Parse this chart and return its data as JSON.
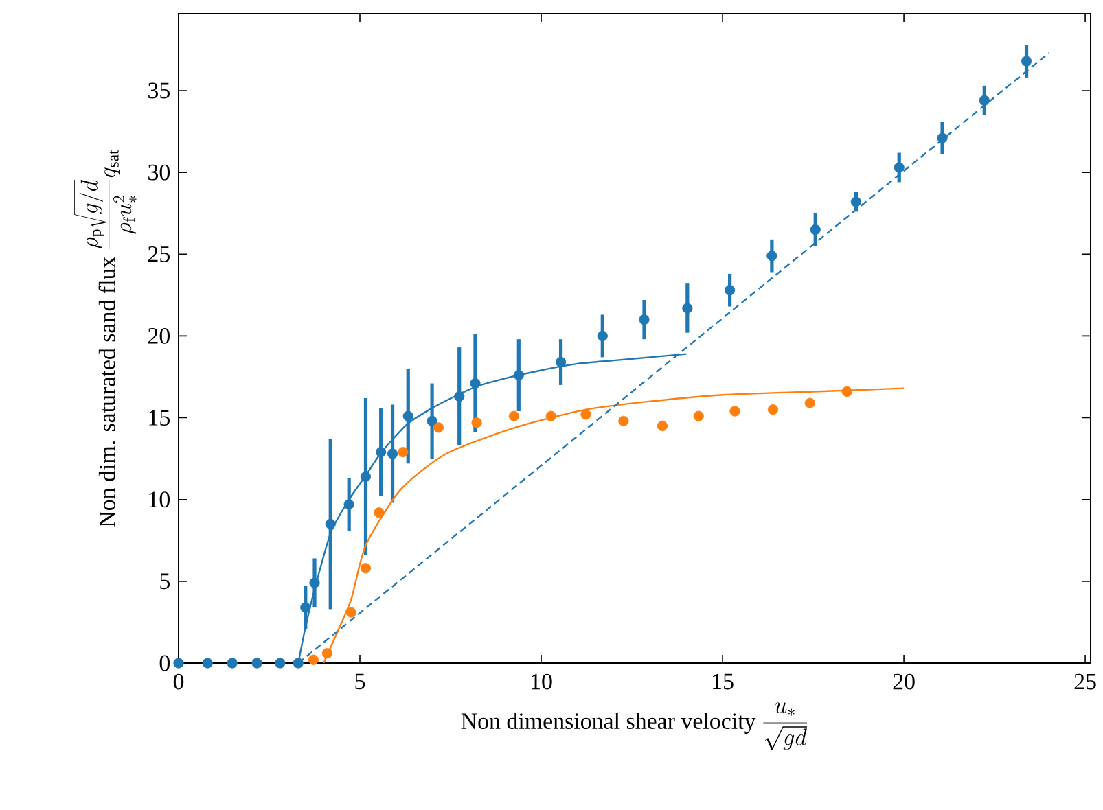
{
  "chart_data": {
    "type": "scatter",
    "xlabel": "\\mbox{Non dimensional shear velocity }\\frac{u_*}{\\sqrt{gd}}",
    "ylabel": "\\mbox{Non dim. saturated sand flux }\\frac{\\rho_{\\mathrm{p}}\\sqrt{g/d}}{\\rho_{\\mathrm{f}}u_*^2}q_{\\mathrm{sat}}",
    "xlim": [
      0,
      25.15
    ],
    "ylim": [
      0,
      39.7
    ],
    "xticks": [
      0,
      5,
      10,
      15,
      20,
      25
    ],
    "yticks": [
      0,
      5,
      10,
      15,
      20,
      25,
      30,
      35
    ],
    "grid": false,
    "series": [
      {
        "color": "#1f77b4",
        "marker": "circle",
        "x": [
          0,
          0.8,
          1.48,
          2.16,
          2.8,
          3.3,
          3.5,
          3.75,
          4.19,
          4.7,
          5.16,
          5.58,
          5.9,
          6.33,
          6.99,
          7.74,
          8.18,
          9.38,
          10.54,
          11.69,
          12.84,
          14.03,
          15.2,
          16.36,
          17.56,
          18.68,
          19.87,
          21.06,
          22.22,
          23.38
        ],
        "values": [
          0,
          0,
          0,
          0,
          0,
          0,
          3.4,
          4.9,
          8.5,
          9.7,
          11.4,
          12.9,
          12.8,
          15.1,
          14.8,
          16.3,
          17.1,
          17.6,
          18.4,
          20.0,
          21.0,
          21.7,
          22.8,
          24.9,
          26.5,
          28.2,
          30.3,
          32.1,
          34.4,
          36.8
        ],
        "errors": [
          null,
          null,
          null,
          null,
          null,
          null,
          1.3,
          1.5,
          5.2,
          1.6,
          4.8,
          2.7,
          3.0,
          2.9,
          2.3,
          3.0,
          3.0,
          2.2,
          1.4,
          1.3,
          1.2,
          1.5,
          1.0,
          1.0,
          1.0,
          0.6,
          0.9,
          1.0,
          0.9,
          1.0
        ]
      },
      {
        "color": "#ff7f0e",
        "marker": "circle",
        "x": [
          3.72,
          4.1,
          4.76,
          5.16,
          5.53,
          6.19,
          7.17,
          8.22,
          9.25,
          10.27,
          11.23,
          12.27,
          13.34,
          14.34,
          15.34,
          16.39,
          17.41,
          18.43
        ],
        "values": [
          0.2,
          0.6,
          3.1,
          5.8,
          9.2,
          12.9,
          14.4,
          14.7,
          15.1,
          15.1,
          15.2,
          14.8,
          14.5,
          15.1,
          15.4,
          15.5,
          15.9,
          16.6
        ]
      },
      {
        "type": "line",
        "color": "#1f77b4",
        "marker": "none",
        "line_style": "solid",
        "x": [
          3.3,
          3.5,
          3.75,
          4.2,
          4.7,
          5.2,
          5.6,
          6.3,
          7,
          7.7,
          8.2,
          9,
          10,
          11,
          12,
          13,
          14
        ],
        "values": [
          0,
          2.2,
          4.5,
          8.0,
          10.0,
          11.6,
          12.9,
          14.6,
          15.6,
          16.4,
          16.9,
          17.4,
          17.9,
          18.3,
          18.5,
          18.7,
          18.9
        ]
      },
      {
        "type": "line",
        "color": "#ff7f0e",
        "marker": "none",
        "line_style": "solid",
        "x": [
          4.0,
          4.3,
          4.76,
          5.16,
          6.12,
          7.38,
          9.28,
          11.23,
          13,
          15,
          17.5,
          20
        ],
        "values": [
          0,
          1.5,
          3.9,
          7.2,
          10.6,
          12.8,
          14.4,
          15.5,
          16.0,
          16.4,
          16.6,
          16.8
        ]
      },
      {
        "type": "line",
        "color": "#1f77b4",
        "marker": "none",
        "line_style": "dashed",
        "x": [
          3.3,
          24.0
        ],
        "values": [
          0,
          37.3
        ]
      }
    ]
  }
}
